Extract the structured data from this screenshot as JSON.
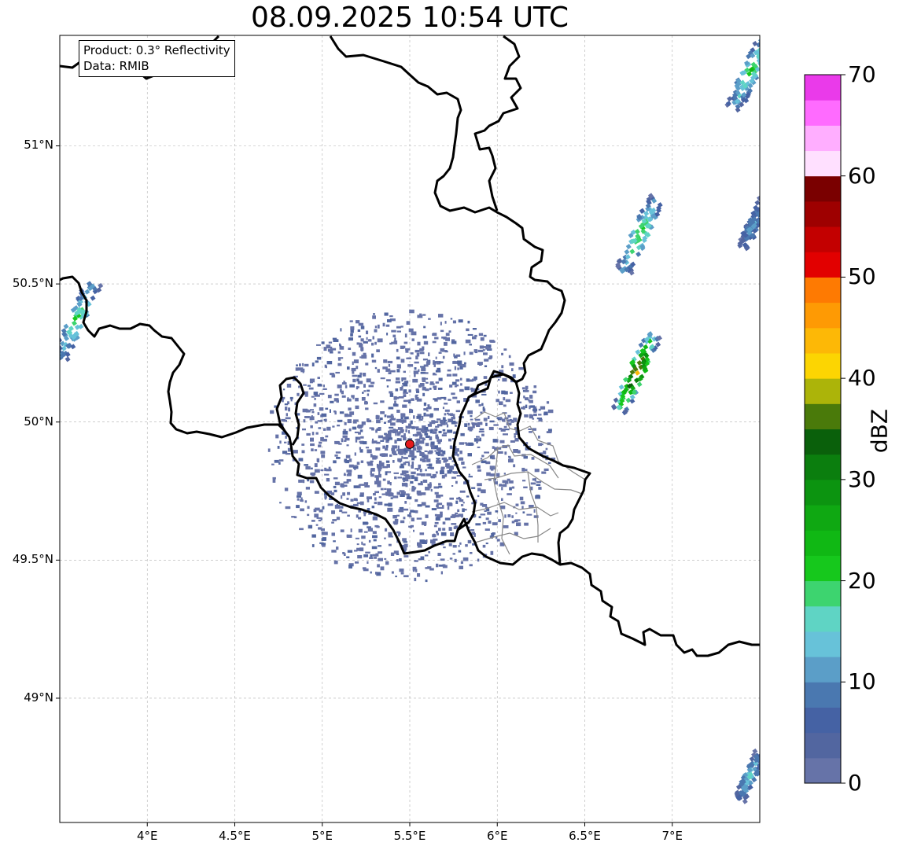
{
  "title": "08.09.2025 10:54 UTC",
  "info": {
    "product": "Product: 0.3° Reflectivity",
    "data_source": "Data: RMIB"
  },
  "axes": {
    "lon_ticks": [
      "4°E",
      "4.5°E",
      "5°E",
      "5.5°E",
      "6°E",
      "6.5°E",
      "7°E"
    ],
    "lat_ticks": [
      "51°N",
      "50.5°N",
      "50°N",
      "49.5°N",
      "49°N"
    ]
  },
  "radar_site": {
    "lon": 5.5,
    "lat": 49.92,
    "color": "#e41a1c"
  },
  "colorbar": {
    "label": "dBZ",
    "tick_labels": [
      "0",
      "10",
      "20",
      "30",
      "40",
      "50",
      "60",
      "70"
    ],
    "range": [
      0,
      70
    ],
    "step": 2.5,
    "colors": [
      "#6673a8",
      "#5266a0",
      "#4562a4",
      "#4a78b0",
      "#5b9ec8",
      "#67c2d9",
      "#5fd4c4",
      "#3dd46f",
      "#16c81c",
      "#10b814",
      "#0fa812",
      "#0c9410",
      "#0b7e0e",
      "#0a600b",
      "#4a7a0a",
      "#acb409",
      "#fcd502",
      "#fdb806",
      "#fe9a04",
      "#fe7a02",
      "#e20000",
      "#c30000",
      "#9e0000",
      "#7a0000",
      "#ffe0ff",
      "#ffaeff",
      "#ff6bff",
      "#ea3aea"
    ]
  },
  "colors": {
    "border": "#000000",
    "admin_border": "#888888",
    "grid": "#b0b0b0"
  },
  "chart_data": {
    "type": "heatmap",
    "title": "08.09.2025 10:54 UTC",
    "xlabel": "",
    "ylabel": "",
    "xlim": [
      3.5,
      7.5
    ],
    "ylim": [
      48.55,
      51.4
    ],
    "x_ticks": [
      4,
      4.5,
      5,
      5.5,
      6,
      6.5,
      7
    ],
    "y_ticks": [
      49,
      49.5,
      50,
      50.5,
      51
    ],
    "grid": true,
    "colorbar_label": "dBZ",
    "colorbar_range": [
      0,
      70
    ],
    "echo_cells": [
      {
        "lon": 6.8,
        "lat": 50.68,
        "peak_dbz": 22
      },
      {
        "lon": 6.78,
        "lat": 50.18,
        "peak_dbz": 42
      },
      {
        "lon": 3.58,
        "lat": 50.37,
        "peak_dbz": 20
      },
      {
        "lon": 7.43,
        "lat": 51.27,
        "peak_dbz": 20
      },
      {
        "lon": 7.45,
        "lat": 50.72,
        "peak_dbz": 10
      },
      {
        "lon": 7.43,
        "lat": 48.72,
        "peak_dbz": 15
      }
    ]
  }
}
